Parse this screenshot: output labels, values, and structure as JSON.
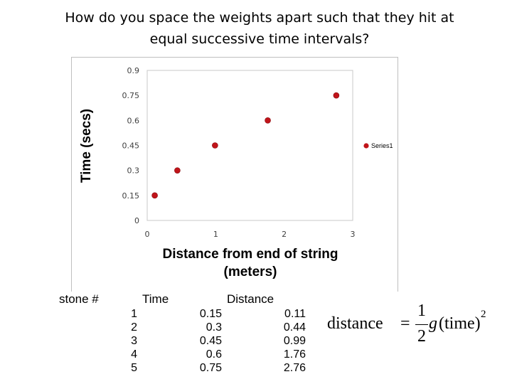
{
  "slide": {
    "title_line1": "How do you space the weights apart such that they hit at",
    "title_line2": "equal successive time intervals?"
  },
  "chart_data": {
    "type": "scatter",
    "xlabel_line1": "Distance from end of string",
    "xlabel_line2": "(meters)",
    "ylabel": "Time  (secs)",
    "xlim": [
      0,
      3
    ],
    "ylim": [
      0,
      0.9
    ],
    "xticks": [
      "0",
      "1",
      "2",
      "3"
    ],
    "yticks": [
      "0",
      "0.15",
      "0.3",
      "0.45",
      "0.6",
      "0.75",
      "0.9"
    ],
    "grid": false,
    "legend_position": "right",
    "marker_color": "#c0141a",
    "series": [
      {
        "name": "Series1",
        "x": [
          0.11,
          0.44,
          0.99,
          1.76,
          2.76
        ],
        "y": [
          0.15,
          0.3,
          0.45,
          0.6,
          0.75
        ]
      }
    ]
  },
  "table": {
    "headers": [
      "stone #",
      "Time",
      "Distance"
    ],
    "rows": [
      [
        "1",
        "0.15",
        "0.11"
      ],
      [
        "2",
        "0.3",
        "0.44"
      ],
      [
        "3",
        "0.45",
        "0.99"
      ],
      [
        "4",
        "0.6",
        "1.76"
      ],
      [
        "5",
        "0.75",
        "2.76"
      ]
    ]
  },
  "formula": {
    "lhs": "distance",
    "equals": "=",
    "numerator": "1",
    "denominator": "2",
    "g": "g",
    "paren_term": "(time)",
    "exponent": "2"
  }
}
